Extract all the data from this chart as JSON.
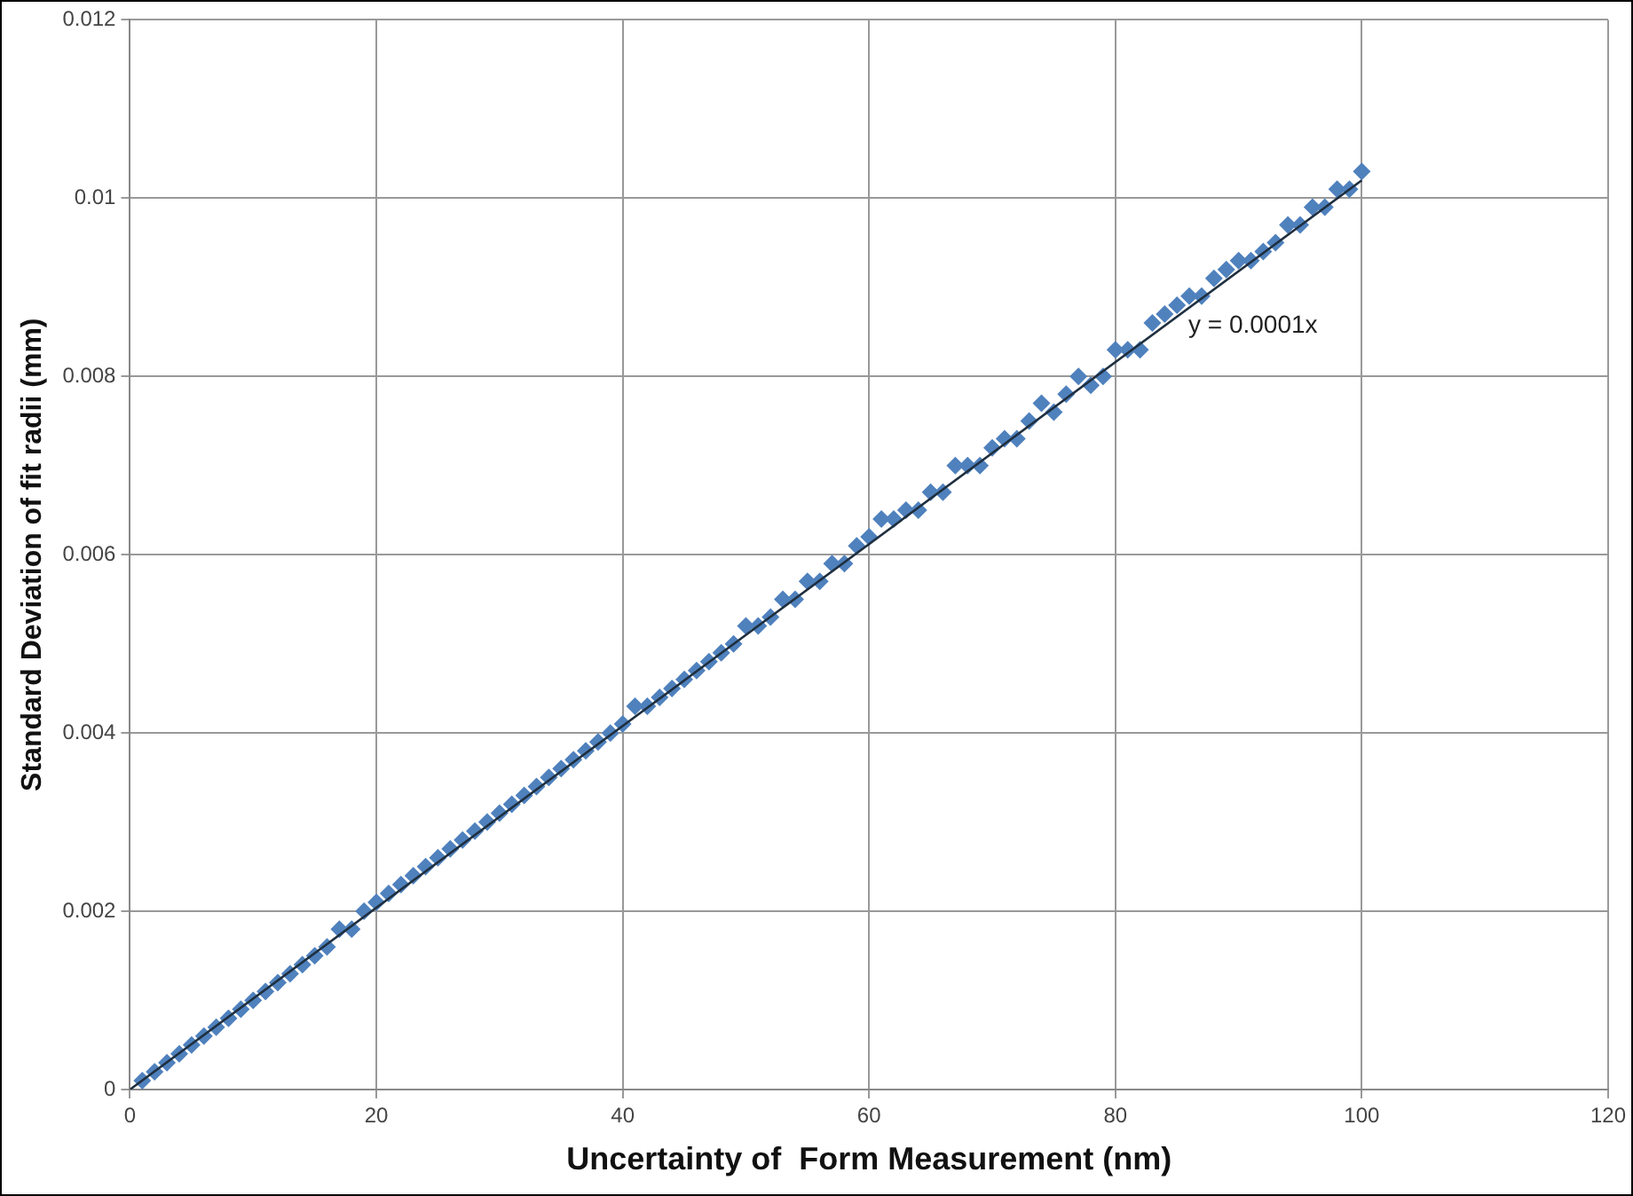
{
  "chart_data": {
    "type": "scatter",
    "xlabel": "Uncertainty of  Form Measurement (nm)",
    "ylabel": "Standard Deviation of fit radii (mm)",
    "xlim": [
      0,
      120
    ],
    "xticks": [
      0,
      20,
      40,
      60,
      80,
      100,
      120
    ],
    "ylim": [
      0,
      0.012
    ],
    "yticks": [
      0,
      0.002,
      0.004,
      0.006,
      0.008,
      0.01,
      0.012
    ],
    "grid": true,
    "legend": false,
    "annotations": [
      "y = 0.0001x"
    ],
    "series": [
      {
        "marker": "diamond",
        "color": "#4f81bd",
        "x": [
          1,
          2,
          3,
          4,
          5,
          6,
          7,
          8,
          9,
          10,
          11,
          12,
          13,
          14,
          15,
          16,
          17,
          18,
          19,
          20,
          21,
          22,
          23,
          24,
          25,
          26,
          27,
          28,
          29,
          30,
          31,
          32,
          33,
          34,
          35,
          36,
          37,
          38,
          39,
          40,
          41,
          42,
          43,
          44,
          45,
          46,
          47,
          48,
          49,
          50,
          51,
          52,
          53,
          54,
          55,
          56,
          57,
          58,
          59,
          60,
          61,
          62,
          63,
          64,
          65,
          66,
          67,
          68,
          69,
          70,
          71,
          72,
          73,
          74,
          75,
          76,
          77,
          78,
          79,
          80,
          81,
          82,
          83,
          84,
          85,
          86,
          87,
          88,
          89,
          90,
          91,
          92,
          93,
          94,
          95,
          96,
          97,
          98,
          99,
          100
        ],
        "values": [
          0.0001,
          0.0002,
          0.0003,
          0.0004,
          0.0005,
          0.0006,
          0.0007,
          0.0008,
          0.0009,
          0.001,
          0.0011,
          0.0012,
          0.0013,
          0.0014,
          0.0015,
          0.0016,
          0.0018,
          0.0018,
          0.002,
          0.0021,
          0.0022,
          0.0023,
          0.0024,
          0.0025,
          0.0026,
          0.0027,
          0.0028,
          0.0029,
          0.003,
          0.0031,
          0.0032,
          0.0033,
          0.0034,
          0.0035,
          0.0036,
          0.0037,
          0.0038,
          0.0039,
          0.004,
          0.0041,
          0.0043,
          0.0043,
          0.0044,
          0.0045,
          0.0046,
          0.0047,
          0.0048,
          0.0049,
          0.005,
          0.0052,
          0.0052,
          0.0053,
          0.0055,
          0.0055,
          0.0057,
          0.0057,
          0.0059,
          0.0059,
          0.0061,
          0.0062,
          0.0064,
          0.0064,
          0.0065,
          0.0065,
          0.0067,
          0.0067,
          0.007,
          0.007,
          0.007,
          0.0072,
          0.0073,
          0.0073,
          0.0075,
          0.0077,
          0.0076,
          0.0078,
          0.008,
          0.0079,
          0.008,
          0.0083,
          0.0083,
          0.0083,
          0.0086,
          0.0087,
          0.0088,
          0.0089,
          0.0089,
          0.0091,
          0.0092,
          0.0093,
          0.0093,
          0.0094,
          0.0095,
          0.0097,
          0.0097,
          0.0099,
          0.0099,
          0.0101,
          0.0101,
          0.0103
        ]
      },
      {
        "type": "line",
        "color": "#1f2f3f",
        "x": [
          0,
          100
        ],
        "values": [
          0,
          0.0102
        ]
      }
    ]
  }
}
